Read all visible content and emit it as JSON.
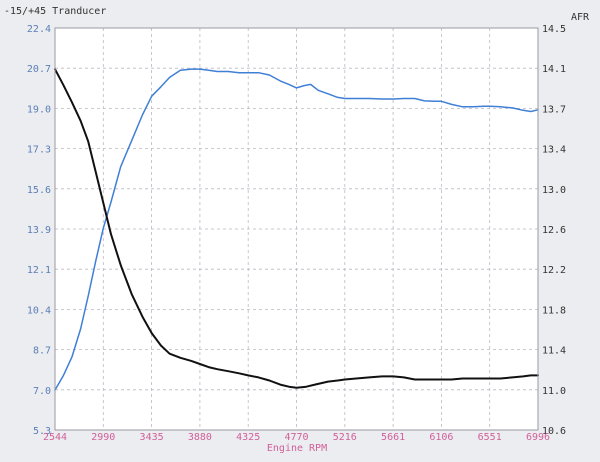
{
  "chart_data": {
    "type": "line",
    "xlabel": "Engine RPM",
    "ylabel_left": "-15/+45 Tranducer",
    "ylabel_right": "AFR",
    "xlim": [
      2544,
      6996
    ],
    "ylim_left": [
      5.3,
      22.4
    ],
    "ylim_right": [
      10.6,
      14.5
    ],
    "x_ticks": [
      "2544",
      "2990",
      "3435",
      "3880",
      "4325",
      "4770",
      "5216",
      "5661",
      "6106",
      "6551",
      "6996"
    ],
    "y_left_ticks": [
      "22.4",
      "20.7",
      "19.0",
      "17.3",
      "15.6",
      "13.9",
      "12.1",
      "10.4",
      "8.7",
      "7.0",
      "5.3"
    ],
    "y_right_ticks": [
      "14.5",
      "14.1",
      "13.7",
      "13.4",
      "13.0",
      "12.6",
      "12.2",
      "11.8",
      "11.4",
      "11.0",
      "10.6"
    ],
    "grid": true,
    "series": [
      {
        "axis": "left",
        "color": "#3f7fd6",
        "points": [
          [
            2544,
            7.0
          ],
          [
            2620,
            7.6
          ],
          [
            2700,
            8.4
          ],
          [
            2780,
            9.6
          ],
          [
            2850,
            11.0
          ],
          [
            2920,
            12.5
          ],
          [
            2990,
            13.9
          ],
          [
            3060,
            15.0
          ],
          [
            3150,
            16.5
          ],
          [
            3250,
            17.6
          ],
          [
            3350,
            18.7
          ],
          [
            3435,
            19.5
          ],
          [
            3520,
            19.9
          ],
          [
            3600,
            20.3
          ],
          [
            3700,
            20.6
          ],
          [
            3800,
            20.65
          ],
          [
            3880,
            20.65
          ],
          [
            3960,
            20.6
          ],
          [
            4040,
            20.55
          ],
          [
            4140,
            20.55
          ],
          [
            4240,
            20.5
          ],
          [
            4325,
            20.5
          ],
          [
            4420,
            20.5
          ],
          [
            4520,
            20.4
          ],
          [
            4620,
            20.15
          ],
          [
            4700,
            20.0
          ],
          [
            4770,
            19.85
          ],
          [
            4840,
            19.95
          ],
          [
            4900,
            20.0
          ],
          [
            4970,
            19.75
          ],
          [
            5060,
            19.6
          ],
          [
            5150,
            19.45
          ],
          [
            5216,
            19.4
          ],
          [
            5320,
            19.4
          ],
          [
            5440,
            19.4
          ],
          [
            5560,
            19.38
          ],
          [
            5661,
            19.38
          ],
          [
            5760,
            19.4
          ],
          [
            5860,
            19.4
          ],
          [
            5950,
            19.3
          ],
          [
            6050,
            19.28
          ],
          [
            6106,
            19.28
          ],
          [
            6200,
            19.15
          ],
          [
            6300,
            19.05
          ],
          [
            6400,
            19.05
          ],
          [
            6500,
            19.07
          ],
          [
            6551,
            19.07
          ],
          [
            6650,
            19.05
          ],
          [
            6760,
            19.0
          ],
          [
            6860,
            18.9
          ],
          [
            6930,
            18.85
          ],
          [
            6996,
            18.92
          ]
        ]
      },
      {
        "axis": "right",
        "color": "#111111",
        "points": [
          [
            2544,
            14.1
          ],
          [
            2620,
            13.95
          ],
          [
            2700,
            13.78
          ],
          [
            2780,
            13.6
          ],
          [
            2850,
            13.4
          ],
          [
            2920,
            13.1
          ],
          [
            2990,
            12.8
          ],
          [
            3060,
            12.5
          ],
          [
            3150,
            12.2
          ],
          [
            3250,
            11.92
          ],
          [
            3350,
            11.7
          ],
          [
            3435,
            11.54
          ],
          [
            3520,
            11.42
          ],
          [
            3600,
            11.34
          ],
          [
            3700,
            11.3
          ],
          [
            3800,
            11.27
          ],
          [
            3880,
            11.24
          ],
          [
            3960,
            11.21
          ],
          [
            4040,
            11.19
          ],
          [
            4140,
            11.17
          ],
          [
            4240,
            11.15
          ],
          [
            4325,
            11.13
          ],
          [
            4420,
            11.11
          ],
          [
            4520,
            11.08
          ],
          [
            4620,
            11.04
          ],
          [
            4700,
            11.02
          ],
          [
            4770,
            11.01
          ],
          [
            4860,
            11.02
          ],
          [
            4940,
            11.04
          ],
          [
            5060,
            11.07
          ],
          [
            5150,
            11.08
          ],
          [
            5216,
            11.09
          ],
          [
            5320,
            11.1
          ],
          [
            5440,
            11.11
          ],
          [
            5560,
            11.12
          ],
          [
            5661,
            11.12
          ],
          [
            5760,
            11.11
          ],
          [
            5860,
            11.09
          ],
          [
            5950,
            11.09
          ],
          [
            6050,
            11.09
          ],
          [
            6106,
            11.09
          ],
          [
            6200,
            11.09
          ],
          [
            6300,
            11.1
          ],
          [
            6400,
            11.1
          ],
          [
            6500,
            11.1
          ],
          [
            6551,
            11.1
          ],
          [
            6650,
            11.1
          ],
          [
            6760,
            11.11
          ],
          [
            6860,
            11.12
          ],
          [
            6930,
            11.13
          ],
          [
            6996,
            11.13
          ]
        ]
      }
    ]
  }
}
